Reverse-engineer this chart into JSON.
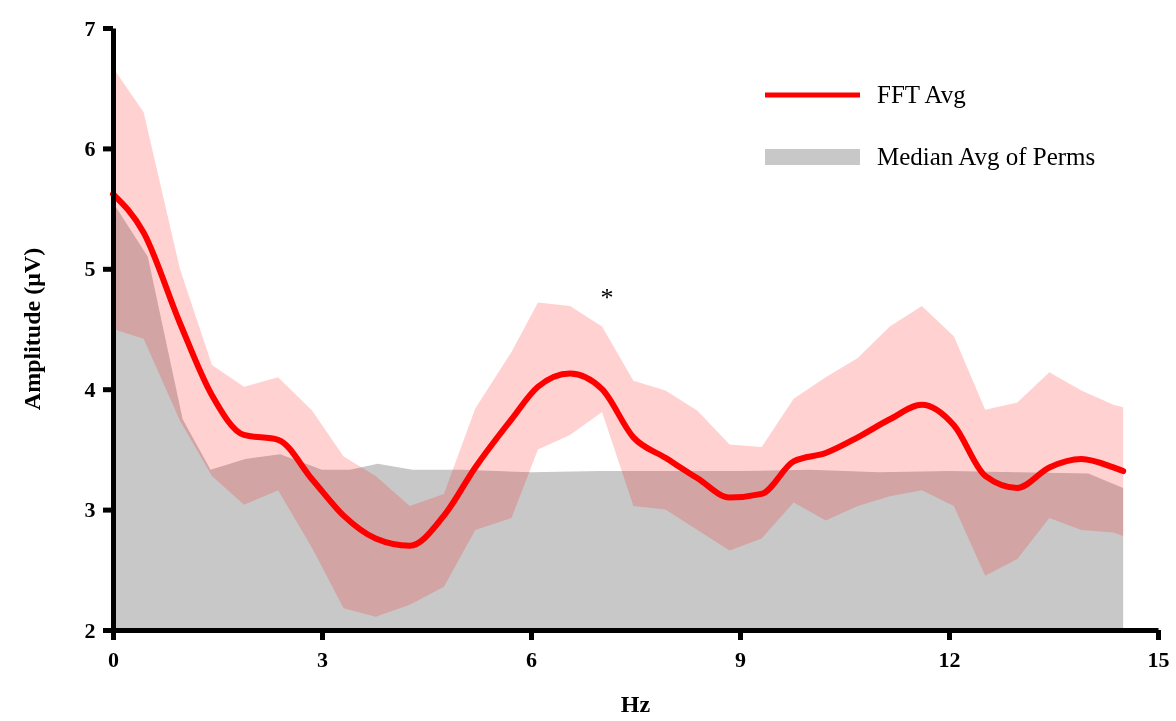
{
  "chart_data": {
    "type": "line",
    "xlabel": "Hz",
    "ylabel": "Amplitude (μV)",
    "xlim": [
      0,
      15
    ],
    "xticks": [
      0,
      3,
      6,
      9,
      12,
      15
    ],
    "ylim": [
      2,
      7
    ],
    "yticks": [
      2,
      3,
      4,
      5,
      6,
      7
    ],
    "grid": false,
    "legend": "top right",
    "marker": "none",
    "line_style": "solid",
    "annotations": [
      "*"
    ],
    "series": [
      {
        "name": "FFT Avg",
        "color": "#ff0000",
        "x": [
          0,
          0.44,
          0.96,
          1.42,
          1.88,
          2.37,
          2.86,
          3.31,
          3.77,
          4.26,
          4.75,
          5.2,
          5.72,
          6.1,
          6.56,
          7.02,
          7.47,
          7.93,
          8.39,
          8.85,
          9.31,
          9.77,
          10.23,
          10.69,
          11.15,
          11.61,
          12.07,
          12.52,
          12.98,
          13.44,
          13.9,
          14.36,
          14.5
        ],
        "values": [
          5.62,
          5.3,
          4.55,
          3.95,
          3.62,
          3.58,
          3.25,
          2.95,
          2.76,
          2.7,
          2.95,
          3.35,
          3.75,
          4.02,
          4.13,
          4.0,
          3.6,
          3.43,
          3.26,
          3.1,
          3.13,
          3.4,
          3.47,
          3.6,
          3.75,
          3.87,
          3.7,
          3.28,
          3.18,
          3.35,
          3.42,
          3.35,
          3.32
        ],
        "lower": [
          4.5,
          4.42,
          3.74,
          3.28,
          3.04,
          3.16,
          2.68,
          2.18,
          2.11,
          2.21,
          2.36,
          2.83,
          2.93,
          3.5,
          3.62,
          3.81,
          3.03,
          3.0,
          2.83,
          2.66,
          2.76,
          3.06,
          2.91,
          3.03,
          3.11,
          3.16,
          3.03,
          2.45,
          2.59,
          2.93,
          2.83,
          2.81,
          2.78
        ],
        "upper": [
          6.67,
          6.3,
          5.0,
          4.2,
          4.02,
          4.1,
          3.82,
          3.44,
          3.28,
          3.03,
          3.13,
          3.84,
          4.31,
          4.72,
          4.69,
          4.52,
          4.07,
          3.99,
          3.82,
          3.54,
          3.52,
          3.92,
          4.1,
          4.26,
          4.52,
          4.69,
          4.44,
          3.83,
          3.89,
          4.14,
          3.99,
          3.87,
          3.85
        ]
      },
      {
        "name": "Median Avg of Perms",
        "type": "area",
        "color": "#c8c8c8",
        "x": [
          0,
          0.5,
          1.0,
          1.4,
          1.9,
          2.4,
          3.0,
          3.4,
          3.8,
          4.3,
          5,
          6,
          7,
          8,
          9,
          10,
          11,
          12,
          13,
          14,
          14.5
        ],
        "values": [
          5.55,
          5.1,
          3.75,
          3.33,
          3.42,
          3.46,
          3.33,
          3.33,
          3.38,
          3.33,
          3.33,
          3.31,
          3.32,
          3.32,
          3.32,
          3.33,
          3.31,
          3.32,
          3.31,
          3.3,
          3.18
        ]
      }
    ]
  }
}
